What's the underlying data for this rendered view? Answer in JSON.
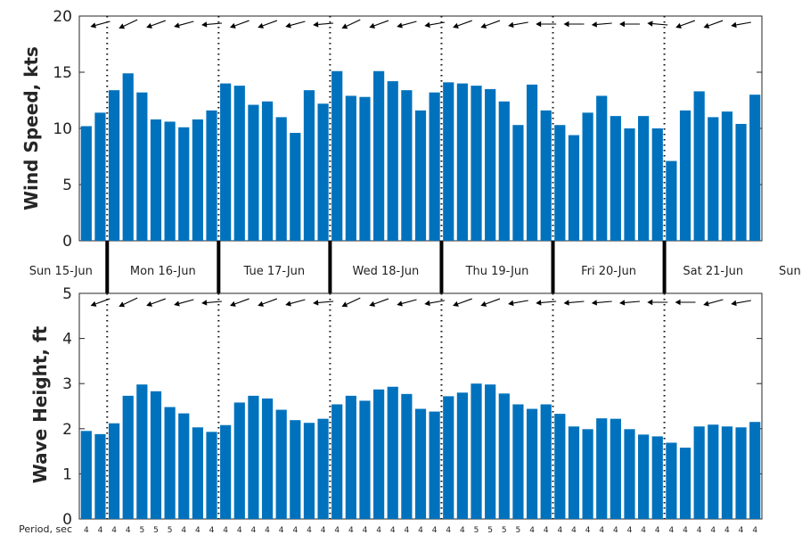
{
  "chart_data": [
    {
      "type": "bar",
      "ylabel": "Wind Speed, kts",
      "ylim": [
        0,
        20
      ],
      "yticks": [
        0,
        5,
        10,
        15,
        20
      ],
      "bar_color": "#0072bd",
      "values": [
        10.2,
        11.4,
        13.4,
        14.9,
        13.2,
        10.8,
        10.6,
        10.1,
        10.8,
        11.6,
        14.0,
        13.8,
        12.1,
        12.4,
        11.0,
        9.6,
        13.4,
        12.2,
        15.1,
        12.9,
        12.8,
        15.1,
        14.2,
        13.4,
        11.6,
        13.2,
        14.1,
        14.0,
        13.8,
        13.5,
        12.4,
        10.3,
        13.9,
        11.6,
        10.3,
        9.4,
        11.4,
        12.9,
        11.1,
        10.0,
        11.1,
        10.0,
        7.1,
        11.6,
        13.3,
        11.0,
        11.5,
        10.4,
        13.0
      ],
      "direction_arrows_deg": [
        185,
        195,
        205,
        205,
        200,
        200,
        200,
        195,
        190,
        185,
        190,
        200,
        200,
        200,
        195,
        195,
        190,
        185,
        200,
        205,
        200,
        200,
        200,
        195,
        195,
        190,
        200,
        200,
        200,
        200,
        195,
        190,
        185,
        180,
        180,
        180,
        180,
        185,
        180,
        180,
        180,
        175,
        175,
        200,
        200,
        200,
        200,
        190,
        180
      ]
    },
    {
      "type": "bar",
      "ylabel": "Wave Height, ft",
      "ylim": [
        0,
        5
      ],
      "yticks": [
        0,
        1,
        2,
        3,
        4,
        5
      ],
      "bar_color": "#0072bd",
      "values": [
        1.95,
        1.88,
        2.12,
        2.73,
        2.98,
        2.83,
        2.48,
        2.34,
        2.03,
        1.93,
        2.08,
        2.58,
        2.73,
        2.67,
        2.42,
        2.19,
        2.13,
        2.22,
        2.54,
        2.73,
        2.62,
        2.87,
        2.93,
        2.77,
        2.44,
        2.38,
        2.72,
        2.8,
        3.0,
        2.98,
        2.78,
        2.54,
        2.44,
        2.54,
        2.33,
        2.05,
        1.99,
        2.23,
        2.22,
        1.99,
        1.87,
        1.83,
        1.69,
        1.58,
        2.05,
        2.09,
        2.05,
        2.03,
        2.15
      ],
      "direction_arrows_deg": [
        185,
        200,
        205,
        205,
        200,
        200,
        200,
        195,
        190,
        185,
        195,
        200,
        200,
        200,
        195,
        195,
        190,
        185,
        200,
        205,
        200,
        200,
        200,
        195,
        195,
        190,
        200,
        200,
        200,
        200,
        195,
        190,
        185,
        185,
        185,
        185,
        185,
        185,
        185,
        185,
        185,
        180,
        180,
        180,
        200,
        195,
        195,
        190,
        180
      ]
    }
  ],
  "x_axis": {
    "first_midnight_index": 1.5,
    "steps_per_day": 8,
    "day_labels": [
      "Sun 15-Jun",
      "Mon 16-Jun",
      "Tue 17-Jun",
      "Wed 18-Jun",
      "Thu 19-Jun",
      "Fri 20-Jun",
      "Sat 21-Jun",
      "Sun"
    ]
  },
  "period": {
    "label": "Period, sec",
    "values": [
      4,
      4,
      4,
      4,
      5,
      5,
      5,
      4,
      4,
      4,
      4,
      4,
      4,
      4,
      4,
      4,
      4,
      4,
      4,
      4,
      4,
      4,
      4,
      4,
      4,
      4,
      4,
      4,
      5,
      5,
      5,
      5,
      4,
      4,
      4,
      4,
      4,
      4,
      4,
      4,
      4,
      4,
      4,
      4,
      4,
      4,
      4,
      4,
      4
    ]
  }
}
